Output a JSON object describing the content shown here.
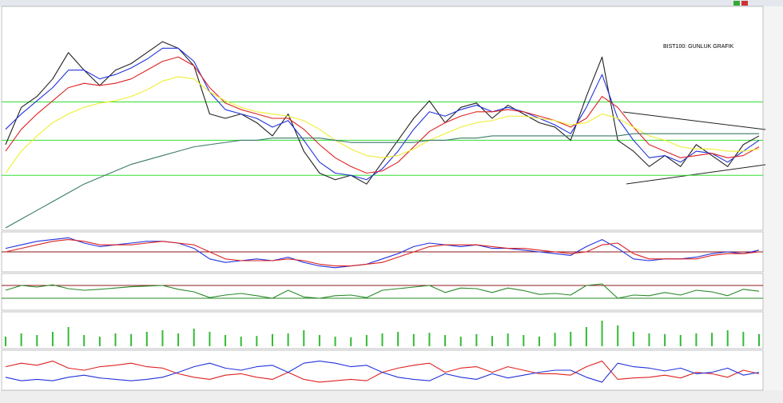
{
  "chart_data": [
    {
      "type": "line",
      "title": "BIST100: GUNLUK GRAFIK",
      "ylim": [
        0,
        100
      ],
      "reference_lines": [
        {
          "value": 57.5,
          "color": "#33dd33"
        },
        {
          "value": 40,
          "color": "#33dd33"
        },
        {
          "value": 24,
          "color": "#33dd33"
        }
      ],
      "series": [
        {
          "color": "#222222",
          "values": [
            38,
            55,
            60,
            68,
            80,
            72,
            65,
            72,
            75,
            80,
            85,
            82,
            74,
            52,
            50,
            52,
            48,
            42,
            52,
            35,
            25,
            22,
            24,
            20,
            30,
            40,
            50,
            58,
            48,
            55,
            57,
            50,
            56,
            52,
            48,
            46,
            40,
            60,
            78,
            40,
            35,
            28,
            33,
            28,
            38,
            33,
            28,
            38,
            42
          ]
        },
        {
          "color": "#2233dd",
          "values": [
            45,
            52,
            58,
            64,
            72,
            72,
            68,
            70,
            73,
            77,
            82,
            82,
            76,
            62,
            54,
            52,
            50,
            46,
            49,
            40,
            30,
            25,
            24,
            22,
            27,
            35,
            45,
            53,
            51,
            54,
            56,
            53,
            55,
            53,
            50,
            47,
            43,
            55,
            70,
            50,
            40,
            32,
            33,
            30,
            35,
            34,
            30,
            35,
            40
          ]
        },
        {
          "color": "#dd2222",
          "values": [
            35,
            45,
            52,
            58,
            64,
            66,
            65,
            66,
            68,
            72,
            76,
            78,
            74,
            64,
            57,
            54,
            52,
            50,
            50,
            45,
            38,
            32,
            28,
            25,
            26,
            30,
            37,
            44,
            48,
            51,
            53,
            53,
            54,
            53,
            51,
            49,
            46,
            50,
            60,
            55,
            46,
            38,
            35,
            32,
            33,
            34,
            32,
            33,
            37
          ]
        },
        {
          "color": "#eeee33",
          "values": [
            25,
            35,
            42,
            48,
            52,
            55,
            57,
            58,
            60,
            63,
            67,
            69,
            68,
            62,
            58,
            55,
            53,
            52,
            51,
            49,
            45,
            40,
            36,
            33,
            32,
            33,
            36,
            40,
            43,
            46,
            48,
            49,
            51,
            51,
            50,
            49,
            47,
            48,
            52,
            50,
            46,
            42,
            40,
            37,
            36,
            36,
            35,
            35,
            36
          ]
        },
        {
          "color": "#3a7a6a",
          "values": [
            0,
            4,
            8,
            12,
            16,
            20,
            23,
            26,
            29,
            31,
            33,
            35,
            37,
            38,
            39,
            40,
            40,
            41,
            41,
            41,
            41,
            40,
            39,
            39,
            39,
            39,
            39,
            40,
            40,
            41,
            41,
            42,
            42,
            42,
            42,
            42,
            42,
            42,
            42,
            42,
            43,
            43,
            43,
            43,
            43,
            43,
            43,
            43,
            43
          ]
        }
      ]
    },
    {
      "type": "line",
      "ylim": [
        -10,
        10
      ],
      "reference_lines": [
        {
          "value": 0,
          "color": "#8b1a1a"
        }
      ],
      "series": [
        {
          "color": "#2233dd",
          "values": [
            2,
            4,
            6,
            7,
            8,
            5,
            3,
            4,
            5,
            6,
            6,
            5,
            2,
            -4,
            -6,
            -5,
            -4,
            -5,
            -3,
            -6,
            -8,
            -9,
            -8,
            -7,
            -4,
            -1,
            3,
            5,
            4,
            3,
            4,
            2,
            2,
            1,
            0,
            -1,
            -2,
            3,
            7,
            2,
            -4,
            -5,
            -4,
            -4,
            -3,
            -1,
            0,
            -1,
            1
          ]
        },
        {
          "color": "#dd2222",
          "values": [
            0,
            2,
            4,
            6,
            7,
            6,
            4,
            4,
            4,
            5,
            6,
            5,
            4,
            0,
            -4,
            -5,
            -5,
            -5,
            -4,
            -5,
            -7,
            -8,
            -8,
            -7,
            -6,
            -3,
            0,
            3,
            4,
            4,
            4,
            3,
            2,
            2,
            1,
            0,
            -1,
            0,
            4,
            5,
            -1,
            -4,
            -4,
            -4,
            -4,
            -2,
            -1,
            -1,
            0
          ]
        }
      ]
    },
    {
      "type": "line",
      "ylim": [
        0,
        100
      ],
      "reference_lines": [
        {
          "value": 70,
          "color": "#8b1a1a"
        },
        {
          "value": 30,
          "color": "#2a8a2a"
        }
      ],
      "series": [
        {
          "color": "#2a8a2a",
          "values": [
            55,
            70,
            65,
            72,
            60,
            55,
            58,
            62,
            66,
            68,
            70,
            58,
            50,
            32,
            40,
            45,
            38,
            30,
            55,
            34,
            30,
            38,
            40,
            32,
            55,
            60,
            65,
            70,
            48,
            62,
            60,
            48,
            62,
            54,
            42,
            45,
            40,
            70,
            75,
            30,
            40,
            38,
            48,
            40,
            55,
            50,
            38,
            58,
            52
          ]
        }
      ]
    },
    {
      "type": "bar",
      "ylim": [
        0,
        100
      ],
      "reference_lines": [],
      "series": [
        {
          "color": "#33bb33",
          "values": [
            30,
            40,
            35,
            45,
            60,
            35,
            30,
            40,
            38,
            45,
            50,
            40,
            55,
            45,
            35,
            30,
            32,
            38,
            40,
            50,
            35,
            30,
            28,
            35,
            40,
            45,
            38,
            42,
            35,
            30,
            38,
            32,
            40,
            35,
            30,
            42,
            45,
            60,
            80,
            65,
            45,
            40,
            38,
            35,
            40,
            42,
            50,
            45,
            38
          ]
        }
      ]
    },
    {
      "type": "line",
      "ylim": [
        0,
        50
      ],
      "reference_lines": [],
      "series": [
        {
          "color": "#dd2222",
          "values": [
            30,
            35,
            32,
            38,
            28,
            25,
            30,
            32,
            35,
            30,
            28,
            20,
            15,
            12,
            18,
            20,
            15,
            12,
            22,
            12,
            8,
            10,
            12,
            10,
            22,
            28,
            32,
            35,
            22,
            28,
            30,
            22,
            30,
            25,
            20,
            20,
            18,
            30,
            38,
            12,
            14,
            15,
            18,
            14,
            22,
            20,
            15,
            25,
            20
          ]
        },
        {
          "color": "#2233dd",
          "values": [
            15,
            10,
            12,
            10,
            15,
            18,
            14,
            12,
            10,
            12,
            15,
            22,
            30,
            35,
            28,
            25,
            30,
            32,
            22,
            35,
            38,
            35,
            30,
            32,
            22,
            15,
            12,
            10,
            20,
            15,
            12,
            20,
            14,
            18,
            22,
            25,
            25,
            15,
            8,
            35,
            30,
            28,
            24,
            28,
            20,
            22,
            28,
            18,
            22
          ]
        }
      ]
    }
  ]
}
